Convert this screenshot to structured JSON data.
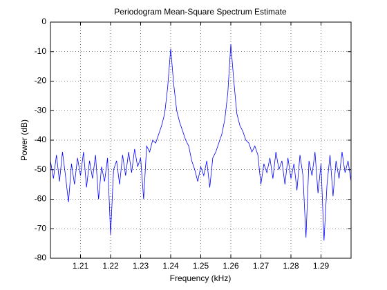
{
  "chart_data": {
    "type": "line",
    "title": "Periodogram Mean-Square Spectrum Estimate",
    "x_label": "Frequency (kHz)",
    "y_label": "Power (dB)",
    "x": [
      1.2,
      1.201,
      1.202,
      1.203,
      1.204,
      1.205,
      1.206,
      1.207,
      1.208,
      1.209,
      1.21,
      1.211,
      1.212,
      1.213,
      1.214,
      1.215,
      1.216,
      1.217,
      1.218,
      1.219,
      1.22,
      1.221,
      1.222,
      1.223,
      1.224,
      1.225,
      1.226,
      1.227,
      1.228,
      1.229,
      1.23,
      1.231,
      1.232,
      1.233,
      1.234,
      1.235,
      1.236,
      1.237,
      1.238,
      1.239,
      1.24,
      1.241,
      1.242,
      1.243,
      1.244,
      1.245,
      1.246,
      1.247,
      1.248,
      1.249,
      1.25,
      1.251,
      1.252,
      1.253,
      1.254,
      1.255,
      1.256,
      1.257,
      1.258,
      1.259,
      1.26,
      1.261,
      1.262,
      1.263,
      1.264,
      1.265,
      1.266,
      1.267,
      1.268,
      1.269,
      1.27,
      1.271,
      1.272,
      1.273,
      1.274,
      1.275,
      1.276,
      1.277,
      1.278,
      1.279,
      1.28,
      1.281,
      1.282,
      1.283,
      1.284,
      1.285,
      1.286,
      1.287,
      1.288,
      1.289,
      1.29,
      1.291,
      1.292,
      1.293,
      1.294,
      1.295,
      1.296,
      1.297,
      1.298,
      1.299,
      1.3
    ],
    "series": [
      {
        "color": "#0000ff",
        "values": [
          -47,
          -53,
          -45,
          -54,
          -44,
          -52,
          -61,
          -48,
          -55,
          -46,
          -52,
          -44,
          -56,
          -47,
          -53,
          -45,
          -60,
          -49,
          -54,
          -46,
          -72,
          -50,
          -47,
          -55,
          -45,
          -52,
          -44,
          -51,
          -43,
          -49,
          -46,
          -60,
          -42,
          -44,
          -40,
          -41,
          -38,
          -35,
          -31,
          -22,
          -9,
          -21,
          -30,
          -34,
          -37,
          -40,
          -42,
          -47,
          -50,
          -54,
          -49,
          -52,
          -47,
          -56,
          -46,
          -44,
          -41,
          -38,
          -33,
          -24,
          -7.5,
          -20,
          -31,
          -35,
          -37,
          -40,
          -41,
          -44,
          -42,
          -45,
          -55,
          -48,
          -51,
          -46,
          -53,
          -44,
          -50,
          -47,
          -55,
          -46,
          -53,
          -48,
          -57,
          -45,
          -52,
          -73,
          -47,
          -52,
          -44,
          -58,
          -48,
          -74,
          -55,
          -45,
          -59,
          -47,
          -53,
          -44,
          -51,
          -47,
          -54
        ]
      }
    ],
    "xlim": [
      1.2,
      1.3
    ],
    "ylim": [
      -80,
      0
    ],
    "xticks": [
      1.21,
      1.22,
      1.23,
      1.24,
      1.25,
      1.26,
      1.27,
      1.28,
      1.29
    ],
    "yticks": [
      -80,
      -70,
      -60,
      -50,
      -40,
      -30,
      -20,
      -10,
      0
    ],
    "grid": true
  }
}
